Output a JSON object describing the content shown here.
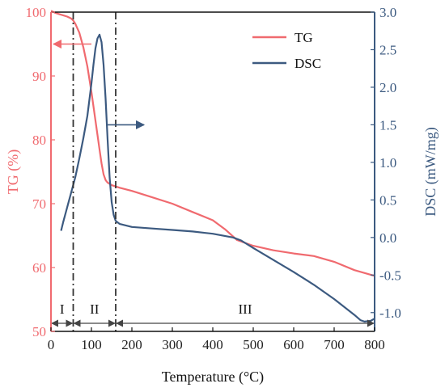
{
  "chart_data": {
    "type": "line",
    "xlabel": "Temperature (°C)",
    "x_ticks": [
      "0",
      "100",
      "200",
      "300",
      "400",
      "500",
      "600",
      "700",
      "800"
    ],
    "xlim": [
      0,
      800
    ],
    "y_left": {
      "label": "TG (%)",
      "ticks": [
        "50",
        "60",
        "70",
        "80",
        "90",
        "100"
      ],
      "lim": [
        50,
        100
      ],
      "color": "#f06a6f"
    },
    "y_right": {
      "label": "DSC (mW/mg)",
      "ticks": [
        "-1.0",
        "-0.5",
        "0.0",
        "0.5",
        "1.0",
        "1.5",
        "2.0",
        "2.5",
        "3.0"
      ],
      "lim": [
        -1.25,
        3.0
      ],
      "color": "#3c5a80"
    },
    "series": [
      {
        "name": "TG",
        "axis": "left",
        "color": "#f06a6f",
        "x": [
          0,
          10,
          20,
          30,
          40,
          50,
          55,
          60,
          65,
          70,
          80,
          90,
          100,
          110,
          120,
          125,
          130,
          135,
          140,
          150,
          160,
          170,
          200,
          250,
          300,
          350,
          400,
          430,
          460,
          500,
          550,
          600,
          650,
          700,
          750,
          800
        ],
        "y": [
          100.2,
          99.9,
          99.7,
          99.5,
          99.3,
          99.0,
          98.7,
          98.2,
          97.5,
          96.8,
          94.5,
          91.5,
          87.5,
          83.0,
          78.5,
          76.3,
          74.6,
          73.7,
          73.3,
          72.9,
          72.7,
          72.5,
          72.0,
          71.0,
          70.0,
          68.7,
          67.4,
          66.0,
          64.3,
          63.4,
          62.7,
          62.2,
          61.8,
          60.9,
          59.6,
          58.7
        ]
      },
      {
        "name": "DSC",
        "axis": "right",
        "color": "#3c5a80",
        "x": [
          25,
          30,
          40,
          50,
          60,
          70,
          80,
          90,
          100,
          105,
          110,
          115,
          120,
          125,
          130,
          135,
          140,
          145,
          150,
          155,
          160,
          170,
          200,
          250,
          300,
          350,
          400,
          450,
          470,
          500,
          550,
          600,
          650,
          700,
          750,
          765,
          775,
          790,
          800
        ],
        "y": [
          0.09,
          0.2,
          0.4,
          0.6,
          0.8,
          1.05,
          1.32,
          1.62,
          2.05,
          2.3,
          2.52,
          2.65,
          2.7,
          2.6,
          2.3,
          1.85,
          1.3,
          0.8,
          0.47,
          0.3,
          0.22,
          0.18,
          0.14,
          0.12,
          0.1,
          0.08,
          0.05,
          0.0,
          -0.04,
          -0.14,
          -0.3,
          -0.46,
          -0.63,
          -0.82,
          -1.03,
          -1.1,
          -1.12,
          -1.11,
          -1.08
        ]
      }
    ],
    "region_lines": [
      55,
      160
    ],
    "regions": [
      {
        "label": "I",
        "x_from": 0,
        "x_to": 55
      },
      {
        "label": "II",
        "x_from": 55,
        "x_to": 160
      },
      {
        "label": "III",
        "x_from": 160,
        "x_to": 800
      }
    ],
    "legend": {
      "position": "top-right",
      "entries": [
        "TG",
        "DSC"
      ]
    },
    "annotations": [
      {
        "type": "arrow",
        "axis": "left",
        "direction": "left",
        "color": "#f06a6f",
        "x_from": 100,
        "x_to": 0,
        "y": 95
      },
      {
        "type": "arrow",
        "axis": "right",
        "direction": "right",
        "color": "#3c5a80",
        "x_from": 140,
        "x_to": 230,
        "y": 1.5
      }
    ]
  }
}
